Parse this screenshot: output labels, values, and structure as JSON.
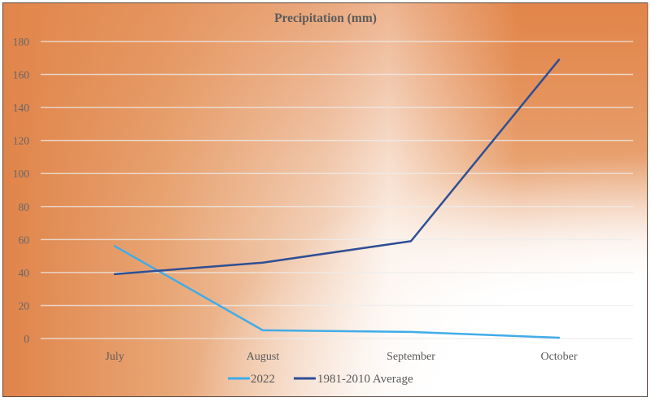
{
  "chart_data": {
    "type": "line",
    "title": "Precipitation (mm)",
    "xlabel": "",
    "ylabel": "",
    "categories": [
      "July",
      "August",
      "September",
      "October"
    ],
    "series": [
      {
        "name": "2022",
        "color": "#41ace8",
        "values": [
          56,
          5,
          4,
          0.5
        ]
      },
      {
        "name": "1981-2010 Average",
        "color": "#2e4f94",
        "values": [
          39,
          46,
          59,
          169
        ]
      }
    ],
    "ylim": [
      0,
      180
    ],
    "yticks": [
      0,
      20,
      40,
      60,
      80,
      100,
      120,
      140,
      160,
      180
    ],
    "ytick_labels": [
      "0",
      "20",
      "40",
      "60",
      "80",
      "100",
      "120",
      "140",
      "160",
      "180"
    ],
    "grid": true,
    "legend_position": "bottom"
  }
}
